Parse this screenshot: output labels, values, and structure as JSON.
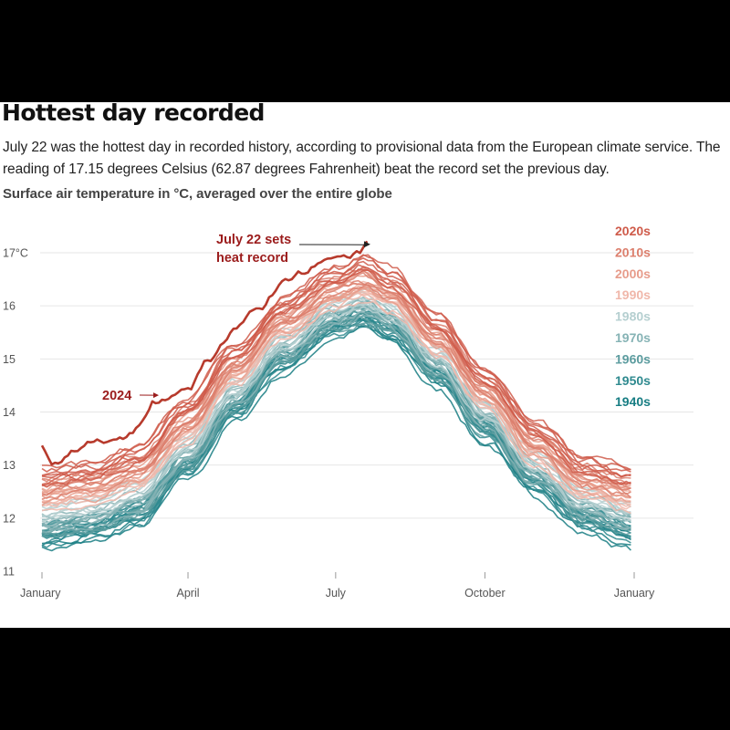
{
  "header": {
    "title": "Hottest day recorded",
    "subtitle": "July 22 was the hottest day in recorded history, according to provisional data from the European climate service. The reading of 17.15 degrees Celsius (62.87 degrees Fahrenheit) beat the record set the previous day.",
    "axis_title": "Surface air temperature in °C, averaged over the entire globe"
  },
  "colors": {
    "1940s": "#177d83",
    "1950s": "#2f8a8f",
    "1960s": "#5c9c9f",
    "1970s": "#86b3b5",
    "1980s": "#b5cfd0",
    "1990s": "#f0b7aa",
    "2000s": "#e79c8b",
    "2010s": "#dc7f6d",
    "2020s": "#cf5b4a",
    "2024": "#b73a2c",
    "annotation": "#9b1c1c"
  },
  "chart_data": {
    "type": "line",
    "title": "Hottest day recorded",
    "ylabel": "Surface air temperature in °C, averaged over the entire globe",
    "x_unit": "day of year",
    "ylim": [
      11,
      17.3
    ],
    "xlim": [
      1,
      366
    ],
    "y_ticks": [
      {
        "value": 11,
        "label": "11"
      },
      {
        "value": 12,
        "label": "12"
      },
      {
        "value": 13,
        "label": "13"
      },
      {
        "value": 14,
        "label": "14"
      },
      {
        "value": 15,
        "label": "15"
      },
      {
        "value": 16,
        "label": "16"
      },
      {
        "value": 17,
        "label": "17°C"
      }
    ],
    "x_ticks": [
      {
        "day": 1,
        "label": "January"
      },
      {
        "day": 91,
        "label": "April"
      },
      {
        "day": 182,
        "label": "July"
      },
      {
        "day": 274,
        "label": "October"
      },
      {
        "day": 366,
        "label": "January"
      }
    ],
    "grid": "horizontal",
    "legend_position": "right",
    "legend": [
      "2020s",
      "2010s",
      "2000s",
      "1990s",
      "1980s",
      "1970s",
      "1960s",
      "1950s",
      "1940s"
    ],
    "series": [
      {
        "decade": "1940s",
        "color": "#177d83",
        "points": [
          [
            1,
            11.6
          ],
          [
            30,
            11.7
          ],
          [
            60,
            12.0
          ],
          [
            91,
            12.9
          ],
          [
            120,
            14.0
          ],
          [
            150,
            14.9
          ],
          [
            182,
            15.6
          ],
          [
            200,
            15.75
          ],
          [
            215,
            15.5
          ],
          [
            245,
            14.6
          ],
          [
            274,
            13.6
          ],
          [
            305,
            12.6
          ],
          [
            335,
            11.9
          ],
          [
            366,
            11.6
          ]
        ]
      },
      {
        "decade": "1950s",
        "color": "#2f8a8f",
        "points": [
          [
            1,
            11.7
          ],
          [
            30,
            11.8
          ],
          [
            60,
            12.1
          ],
          [
            91,
            13.0
          ],
          [
            120,
            14.1
          ],
          [
            150,
            15.0
          ],
          [
            182,
            15.65
          ],
          [
            200,
            15.8
          ],
          [
            215,
            15.6
          ],
          [
            245,
            14.7
          ],
          [
            274,
            13.7
          ],
          [
            305,
            12.7
          ],
          [
            335,
            12.0
          ],
          [
            366,
            11.7
          ]
        ]
      },
      {
        "decade": "1960s",
        "color": "#5c9c9f",
        "points": [
          [
            1,
            11.75
          ],
          [
            30,
            11.85
          ],
          [
            60,
            12.15
          ],
          [
            91,
            13.05
          ],
          [
            120,
            14.15
          ],
          [
            150,
            15.05
          ],
          [
            182,
            15.7
          ],
          [
            200,
            15.85
          ],
          [
            215,
            15.65
          ],
          [
            245,
            14.75
          ],
          [
            274,
            13.75
          ],
          [
            305,
            12.75
          ],
          [
            335,
            12.05
          ],
          [
            366,
            11.8
          ]
        ]
      },
      {
        "decade": "1970s",
        "color": "#86b3b5",
        "points": [
          [
            1,
            11.9
          ],
          [
            30,
            12.0
          ],
          [
            60,
            12.3
          ],
          [
            91,
            13.2
          ],
          [
            120,
            14.3
          ],
          [
            150,
            15.2
          ],
          [
            182,
            15.8
          ],
          [
            200,
            15.95
          ],
          [
            215,
            15.75
          ],
          [
            245,
            14.9
          ],
          [
            274,
            13.9
          ],
          [
            305,
            12.9
          ],
          [
            335,
            12.2
          ],
          [
            366,
            11.95
          ]
        ]
      },
      {
        "decade": "1980s",
        "color": "#b5cfd0",
        "points": [
          [
            1,
            12.1
          ],
          [
            30,
            12.2
          ],
          [
            60,
            12.5
          ],
          [
            91,
            13.4
          ],
          [
            120,
            14.45
          ],
          [
            150,
            15.35
          ],
          [
            182,
            15.95
          ],
          [
            200,
            16.1
          ],
          [
            215,
            15.9
          ],
          [
            245,
            15.05
          ],
          [
            274,
            14.05
          ],
          [
            305,
            13.05
          ],
          [
            335,
            12.35
          ],
          [
            366,
            12.1
          ]
        ]
      },
      {
        "decade": "1990s",
        "color": "#f0b7aa",
        "points": [
          [
            1,
            12.3
          ],
          [
            30,
            12.4
          ],
          [
            60,
            12.7
          ],
          [
            91,
            13.6
          ],
          [
            120,
            14.65
          ],
          [
            150,
            15.55
          ],
          [
            182,
            16.1
          ],
          [
            200,
            16.25
          ],
          [
            215,
            16.05
          ],
          [
            245,
            15.2
          ],
          [
            274,
            14.2
          ],
          [
            305,
            13.2
          ],
          [
            335,
            12.5
          ],
          [
            366,
            12.3
          ]
        ]
      },
      {
        "decade": "2000s",
        "color": "#e79c8b",
        "points": [
          [
            1,
            12.45
          ],
          [
            30,
            12.55
          ],
          [
            60,
            12.85
          ],
          [
            91,
            13.75
          ],
          [
            120,
            14.8
          ],
          [
            150,
            15.7
          ],
          [
            182,
            16.25
          ],
          [
            200,
            16.4
          ],
          [
            215,
            16.2
          ],
          [
            245,
            15.35
          ],
          [
            274,
            14.35
          ],
          [
            305,
            13.35
          ],
          [
            335,
            12.65
          ],
          [
            366,
            12.45
          ]
        ]
      },
      {
        "decade": "2010s",
        "color": "#dc7f6d",
        "points": [
          [
            1,
            12.6
          ],
          [
            30,
            12.7
          ],
          [
            60,
            13.0
          ],
          [
            91,
            13.9
          ],
          [
            120,
            14.95
          ],
          [
            150,
            15.85
          ],
          [
            182,
            16.4
          ],
          [
            200,
            16.55
          ],
          [
            215,
            16.35
          ],
          [
            245,
            15.5
          ],
          [
            274,
            14.5
          ],
          [
            305,
            13.5
          ],
          [
            335,
            12.8
          ],
          [
            366,
            12.6
          ]
        ]
      },
      {
        "decade": "2020s",
        "color": "#cf5b4a",
        "points": [
          [
            1,
            12.8
          ],
          [
            30,
            12.9
          ],
          [
            60,
            13.2
          ],
          [
            91,
            14.1
          ],
          [
            120,
            15.15
          ],
          [
            150,
            16.05
          ],
          [
            182,
            16.6
          ],
          [
            200,
            16.8
          ],
          [
            215,
            16.55
          ],
          [
            245,
            15.7
          ],
          [
            274,
            14.7
          ],
          [
            305,
            13.7
          ],
          [
            335,
            13.0
          ],
          [
            366,
            12.8
          ]
        ]
      },
      {
        "decade": "2024",
        "color": "#b73a2c",
        "points": [
          [
            1,
            13.35
          ],
          [
            8,
            13.0
          ],
          [
            20,
            13.25
          ],
          [
            35,
            13.45
          ],
          [
            50,
            13.55
          ],
          [
            60,
            13.7
          ],
          [
            70,
            14.2
          ],
          [
            80,
            14.25
          ],
          [
            91,
            14.45
          ],
          [
            105,
            15.0
          ],
          [
            120,
            15.55
          ],
          [
            135,
            15.95
          ],
          [
            150,
            16.45
          ],
          [
            160,
            16.65
          ],
          [
            170,
            16.75
          ],
          [
            182,
            16.9
          ],
          [
            190,
            16.95
          ],
          [
            197,
            17.0
          ],
          [
            201,
            17.15
          ]
        ]
      }
    ],
    "annotations": [
      {
        "text_lines": [
          "July 22 sets",
          "heat record"
        ],
        "target": {
          "day": 204,
          "value": 17.16
        }
      },
      {
        "text": "2024",
        "target": {
          "day": 73,
          "value": 14.35
        }
      }
    ]
  }
}
